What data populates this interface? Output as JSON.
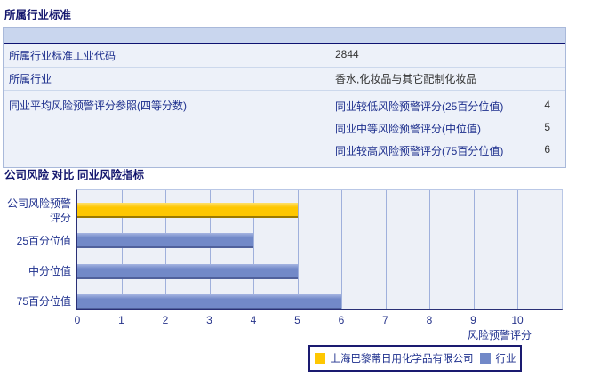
{
  "section1": {
    "title": "所属行业标准",
    "table": {
      "rows": [
        {
          "label": "所属行业标准工业代码",
          "value": "2844"
        },
        {
          "label": "所属行业",
          "value": "香水,化妆品与其它配制化妆品"
        },
        {
          "label": "同业平均风险预警评分参照(四等分数)",
          "subrows": [
            {
              "label": "同业较低风险预警评分(25百分位值)",
              "value": "4"
            },
            {
              "label": "同业中等风险预警评分(中位值)",
              "value": "5"
            },
            {
              "label": "同业较高风险预警评分(75百分位值)",
              "value": "6"
            }
          ]
        }
      ]
    }
  },
  "section2": {
    "title": "公司风险 对比 同业风险指标"
  },
  "chart_data": {
    "type": "bar",
    "orientation": "horizontal",
    "title": "",
    "xlabel": "风险预警评分",
    "ylabel": "",
    "xlim": [
      0,
      10
    ],
    "xticks": [
      0,
      1,
      2,
      3,
      4,
      5,
      6,
      7,
      8,
      9,
      10
    ],
    "grid": true,
    "legend_position": "bottom",
    "categories": [
      "公司风险预警评分",
      "25百分位值",
      "中分位值",
      "75百分位值"
    ],
    "series": [
      {
        "name": "上海巴黎蒂日用化学品有限公司",
        "color": "#fec701",
        "values": [
          5,
          null,
          null,
          null
        ]
      },
      {
        "name": "行业",
        "color": "#7289c8",
        "values": [
          null,
          4,
          5,
          6
        ]
      }
    ]
  },
  "colors": {
    "title_navy": "#14176e",
    "label_navy": "#1d2f8d",
    "value_text": "#333333",
    "table_header_bg": "#c9d6ee",
    "table_header_line": "#0d1271",
    "row_bg": "#edf1f9",
    "plot_bg": "#edf0f7",
    "gridline": "#9fb0dc",
    "axis_navy": "#2a3076",
    "bar_company": "#fec701",
    "bar_industry": "#7289c8"
  }
}
